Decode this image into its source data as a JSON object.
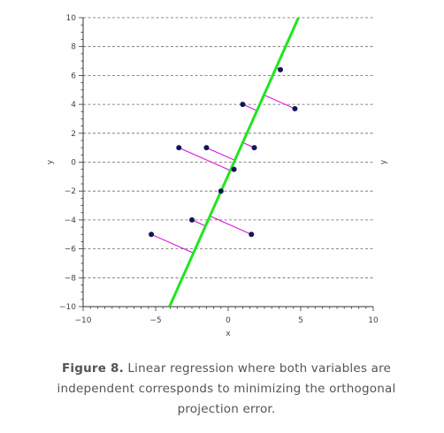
{
  "chart_data": {
    "type": "scatter",
    "title": "",
    "xlabel": "x",
    "ylabel": "y",
    "ylabel_right": "y",
    "xlim": [
      -10,
      10
    ],
    "ylim": [
      -10,
      10
    ],
    "x_ticks": [
      -10,
      -5,
      0,
      5,
      10
    ],
    "y_ticks": [
      -10,
      -8,
      -6,
      -4,
      -2,
      0,
      2,
      4,
      6,
      8,
      10
    ],
    "x_tick_labels": [
      "−10",
      "−5",
      "0",
      "5",
      "10"
    ],
    "y_tick_labels": [
      "−10",
      "−8",
      "−6",
      "−4",
      "−2",
      "0",
      "2",
      "4",
      "6",
      "8",
      "10"
    ],
    "grid": "horizontal dashed",
    "points": [
      {
        "x": -5.3,
        "y": -5.0
      },
      {
        "x": -2.5,
        "y": -4.0
      },
      {
        "x": 1.6,
        "y": -5.0
      },
      {
        "x": -0.5,
        "y": -2.0
      },
      {
        "x": -3.4,
        "y": 1.0
      },
      {
        "x": -1.5,
        "y": 1.0
      },
      {
        "x": 0.4,
        "y": -0.5
      },
      {
        "x": 1.8,
        "y": 1.0
      },
      {
        "x": 1.0,
        "y": 4.0
      },
      {
        "x": 4.6,
        "y": 3.7
      },
      {
        "x": 3.6,
        "y": 6.4
      }
    ],
    "fit_line": {
      "slope": 2.25,
      "intercept": -0.9
    },
    "colors": {
      "points": "#14145a",
      "fit_line": "#22e422",
      "residuals": "#dd22dd",
      "grid": "#666666",
      "axis": "#333333"
    }
  },
  "caption": {
    "label": "Figure 8.",
    "text": " Linear regression where both variables are independent corresponds to minimizing the orthogonal projection error."
  }
}
